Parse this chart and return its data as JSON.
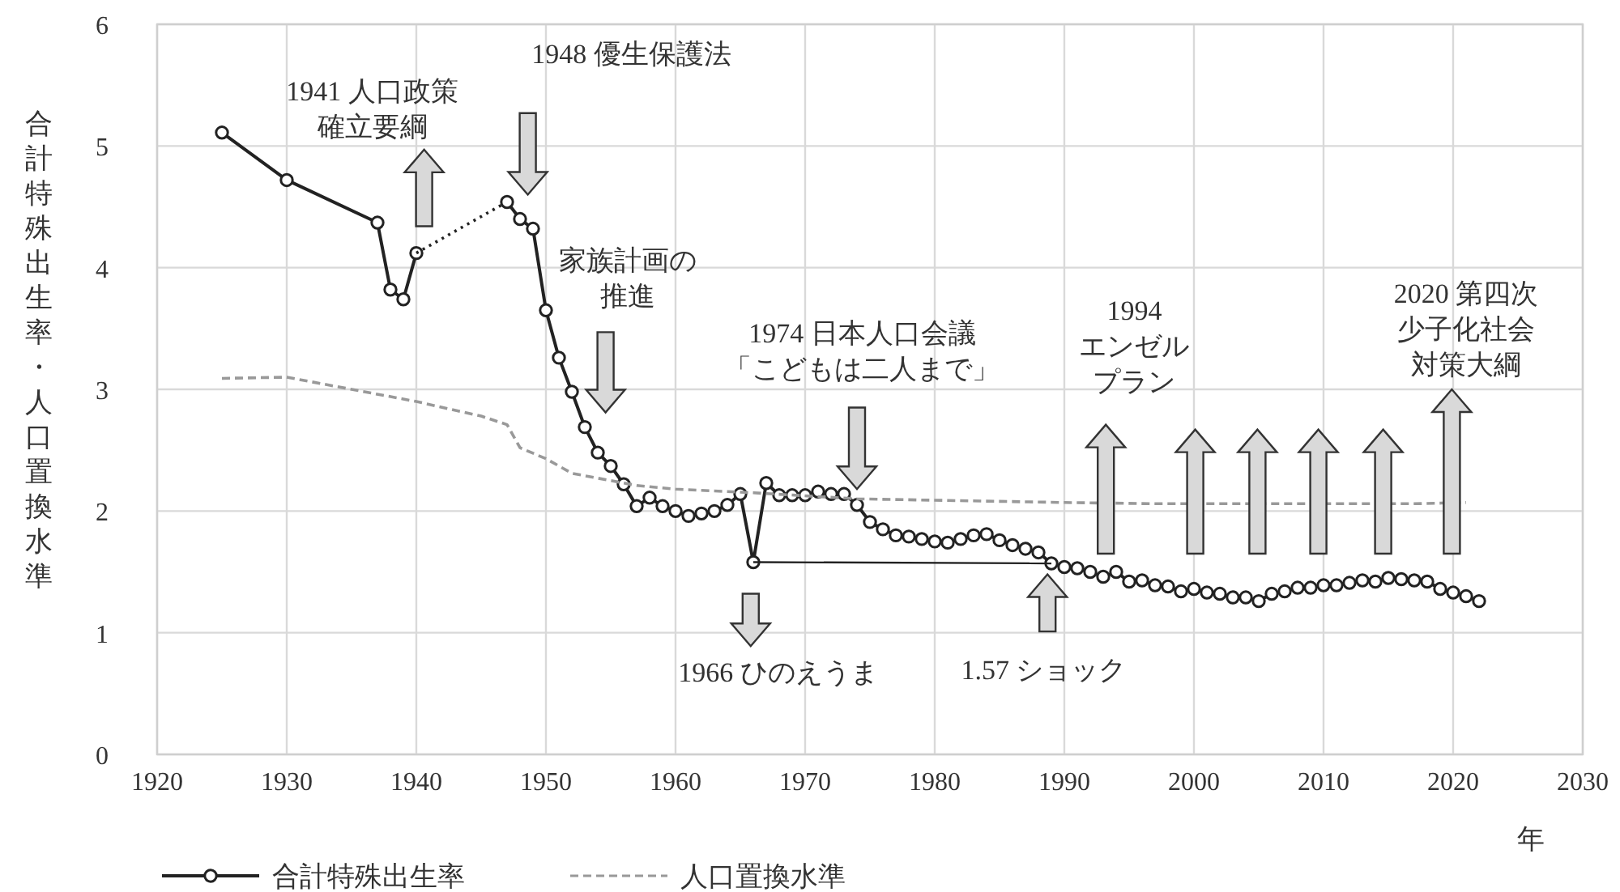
{
  "chart_data": {
    "type": "line",
    "xlabel": "年",
    "ylabel": "合計特殊出生率・人口置換水準",
    "xlim": [
      1920,
      2030
    ],
    "xticks": [
      1920,
      1930,
      1940,
      1950,
      1960,
      1970,
      1980,
      1990,
      2000,
      2010,
      2020,
      2030
    ],
    "ylim": [
      0,
      6
    ],
    "yticks": [
      0,
      1,
      2,
      3,
      4,
      5,
      6
    ],
    "grid": true,
    "legend": "bottom",
    "series": [
      {
        "name": "合計特殊出生率",
        "color": "#222222",
        "marker": "circle",
        "line_style": "solid",
        "x": [
          1925,
          1930,
          1937,
          1938,
          1939,
          1940
        ],
        "values": [
          5.11,
          4.72,
          4.37,
          3.82,
          3.74,
          4.12
        ]
      },
      {
        "color": "#222222",
        "line_style": "dotted",
        "x": [
          1940,
          1947
        ],
        "values": [
          4.12,
          4.54
        ]
      },
      {
        "color": "#222222",
        "marker": "circle",
        "line_style": "solid",
        "x": [
          1947,
          1948,
          1949,
          1950,
          1951,
          1952,
          1953,
          1954,
          1955,
          1956,
          1957,
          1958,
          1959,
          1960,
          1961,
          1962,
          1963,
          1964,
          1965,
          1966,
          1967,
          1968,
          1969,
          1970,
          1971,
          1972,
          1973,
          1974,
          1975,
          1976,
          1977,
          1978,
          1979,
          1980,
          1981,
          1982,
          1983,
          1984,
          1985,
          1986,
          1987,
          1988,
          1989,
          1990,
          1991,
          1992,
          1993,
          1994,
          1995,
          1996,
          1997,
          1998,
          1999,
          2000,
          2001,
          2002,
          2003,
          2004,
          2005,
          2006,
          2007,
          2008,
          2009,
          2010,
          2011,
          2012,
          2013,
          2014,
          2015,
          2016,
          2017,
          2018,
          2019,
          2020,
          2021,
          2022
        ],
        "values": [
          4.54,
          4.4,
          4.32,
          3.65,
          3.26,
          2.98,
          2.69,
          2.48,
          2.37,
          2.22,
          2.04,
          2.11,
          2.04,
          2.0,
          1.96,
          1.98,
          2.0,
          2.05,
          2.14,
          1.58,
          2.23,
          2.13,
          2.13,
          2.13,
          2.16,
          2.14,
          2.14,
          2.05,
          1.91,
          1.85,
          1.8,
          1.79,
          1.77,
          1.75,
          1.74,
          1.77,
          1.8,
          1.81,
          1.76,
          1.72,
          1.69,
          1.66,
          1.57,
          1.54,
          1.53,
          1.5,
          1.46,
          1.5,
          1.42,
          1.43,
          1.39,
          1.38,
          1.34,
          1.36,
          1.33,
          1.32,
          1.29,
          1.29,
          1.26,
          1.32,
          1.34,
          1.37,
          1.37,
          1.39,
          1.39,
          1.41,
          1.43,
          1.42,
          1.45,
          1.44,
          1.43,
          1.42,
          1.36,
          1.33,
          1.3,
          1.26
        ]
      },
      {
        "color": "#222222",
        "line_style": "solid",
        "x": [
          1966,
          1989
        ],
        "values": [
          1.58,
          1.57
        ]
      },
      {
        "name": "人口置換水準",
        "color": "#999999",
        "line_style": "dashed",
        "x": [
          1925,
          1930,
          1935,
          1940,
          1945,
          1947,
          1948,
          1950,
          1952,
          1956,
          1957,
          1960,
          1966,
          1974,
          1990,
          1997,
          2002.5,
          2007.3,
          2012.2,
          2017,
          2021
        ],
        "values": [
          3.09,
          3.1,
          3.0,
          2.9,
          2.78,
          2.71,
          2.52,
          2.43,
          2.31,
          2.23,
          2.21,
          2.18,
          2.15,
          2.1,
          2.07,
          2.06,
          2.06,
          2.06,
          2.06,
          2.06,
          2.07
        ]
      }
    ],
    "annotations": [
      "1941 人口政策確立要綱",
      "1948 優生保護法",
      "家族計画の推進",
      "1974 日本人口会議「こどもは二人まで」",
      "1994 エンゼルプラン",
      "2020 第四次少子化社会対策大綱",
      "1966 ひのえうま",
      "1.57 ショック"
    ]
  }
}
